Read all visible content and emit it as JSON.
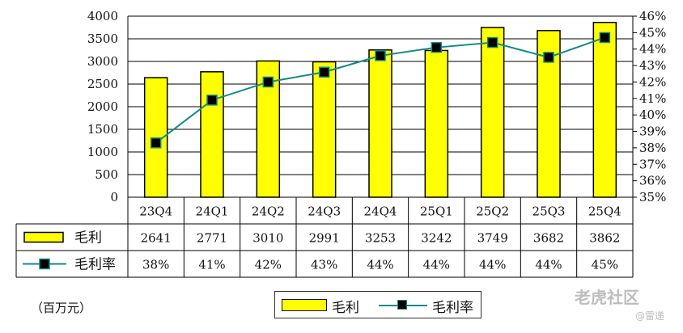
{
  "chart_data": {
    "type": "bar",
    "categories": [
      "23Q4",
      "24Q1",
      "24Q2",
      "24Q3",
      "24Q4",
      "25Q1",
      "25Q2",
      "25Q3",
      "25Q4"
    ],
    "series": [
      {
        "name": "毛利",
        "kind": "bar",
        "axis": "left",
        "values": [
          2641,
          2771,
          3010,
          2991,
          3253,
          3242,
          3749,
          3682,
          3862
        ],
        "color": "#ffff00"
      },
      {
        "name": "毛利率",
        "kind": "line",
        "axis": "right",
        "values": [
          38.3,
          40.9,
          42.0,
          42.6,
          43.6,
          44.1,
          44.4,
          43.5,
          44.7
        ],
        "labels": [
          "38%",
          "41%",
          "42%",
          "43%",
          "44%",
          "44%",
          "44%",
          "44%",
          "45%"
        ],
        "color": "#138a8a"
      }
    ],
    "y_left": {
      "min": 0,
      "max": 4000,
      "step": 500,
      "ticks": [
        "0",
        "500",
        "1000",
        "1500",
        "2000",
        "2500",
        "3000",
        "3500",
        "4000"
      ]
    },
    "y_right": {
      "min": 35,
      "max": 46,
      "step": 1,
      "ticks": [
        "35%",
        "36%",
        "37%",
        "38%",
        "39%",
        "40%",
        "41%",
        "42%",
        "43%",
        "44%",
        "45%",
        "46%"
      ]
    },
    "grid": true,
    "unit": "（百万元）",
    "legend_position": "bottom"
  },
  "watermark": {
    "text": "老虎社区",
    "sub": "@雷递"
  }
}
